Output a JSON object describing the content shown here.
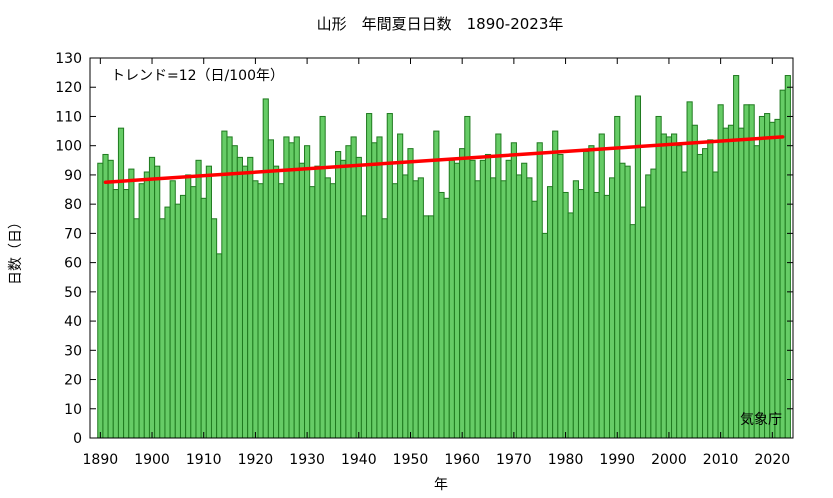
{
  "chart_data": {
    "type": "bar",
    "title": "山形　年間夏日日数　1890-2023年",
    "xlabel": "年",
    "ylabel": "日数（日）",
    "trend_label": "トレンド=12（日/100年）",
    "credit": "気象庁",
    "xlim": [
      1888,
      2024
    ],
    "ylim": [
      0,
      130
    ],
    "x_ticks": [
      1890,
      1900,
      1910,
      1920,
      1930,
      1940,
      1950,
      1960,
      1970,
      1980,
      1990,
      2000,
      2010,
      2020
    ],
    "y_ticks": [
      0,
      10,
      20,
      30,
      40,
      50,
      60,
      70,
      80,
      90,
      100,
      110,
      120,
      130
    ],
    "grid": false,
    "bar_color": "#66cc66",
    "bar_edge_color": "#1f7a1f",
    "trend_color": "#ff0000",
    "years": [
      1890,
      1891,
      1892,
      1893,
      1894,
      1895,
      1896,
      1897,
      1898,
      1899,
      1900,
      1901,
      1902,
      1903,
      1904,
      1905,
      1906,
      1907,
      1908,
      1909,
      1910,
      1911,
      1912,
      1913,
      1914,
      1915,
      1916,
      1917,
      1918,
      1919,
      1920,
      1921,
      1922,
      1923,
      1924,
      1925,
      1926,
      1927,
      1928,
      1929,
      1930,
      1931,
      1932,
      1933,
      1934,
      1935,
      1936,
      1937,
      1938,
      1939,
      1940,
      1941,
      1942,
      1943,
      1944,
      1945,
      1946,
      1947,
      1948,
      1949,
      1950,
      1951,
      1952,
      1953,
      1954,
      1955,
      1956,
      1957,
      1958,
      1959,
      1960,
      1961,
      1962,
      1963,
      1964,
      1965,
      1966,
      1967,
      1968,
      1969,
      1970,
      1971,
      1972,
      1973,
      1974,
      1975,
      1976,
      1977,
      1978,
      1979,
      1980,
      1981,
      1982,
      1983,
      1984,
      1985,
      1986,
      1987,
      1988,
      1989,
      1990,
      1991,
      1992,
      1993,
      1994,
      1995,
      1996,
      1997,
      1998,
      1999,
      2000,
      2001,
      2002,
      2003,
      2004,
      2005,
      2006,
      2007,
      2008,
      2009,
      2010,
      2011,
      2012,
      2013,
      2014,
      2015,
      2016,
      2017,
      2018,
      2019,
      2020,
      2021,
      2022,
      2023
    ],
    "values": [
      94,
      97,
      95,
      85,
      106,
      85,
      92,
      75,
      87,
      91,
      96,
      93,
      75,
      79,
      88,
      80,
      83,
      90,
      86,
      95,
      82,
      93,
      75,
      63,
      105,
      103,
      100,
      96,
      93,
      96,
      88,
      87,
      116,
      102,
      93,
      87,
      103,
      101,
      103,
      94,
      100,
      86,
      93,
      110,
      89,
      87,
      98,
      95,
      100,
      103,
      96,
      76,
      111,
      101,
      103,
      75,
      111,
      87,
      104,
      90,
      99,
      88,
      89,
      76,
      76,
      105,
      84,
      82,
      95,
      94,
      99,
      110,
      95,
      88,
      95,
      97,
      89,
      104,
      88,
      95,
      101,
      90,
      94,
      89,
      81,
      101,
      70,
      86,
      105,
      97,
      84,
      77,
      88,
      85,
      98,
      100,
      84,
      104,
      83,
      89,
      110,
      94,
      93,
      73,
      117,
      79,
      90,
      92,
      110,
      104,
      103,
      104,
      100,
      91,
      115,
      107,
      97,
      99,
      102,
      91,
      114,
      106,
      107,
      124,
      106,
      114,
      114,
      100,
      110,
      111,
      108,
      109,
      119,
      124
    ],
    "trend": {
      "x": [
        1891,
        2022
      ],
      "y": [
        87.5,
        103
      ]
    }
  }
}
